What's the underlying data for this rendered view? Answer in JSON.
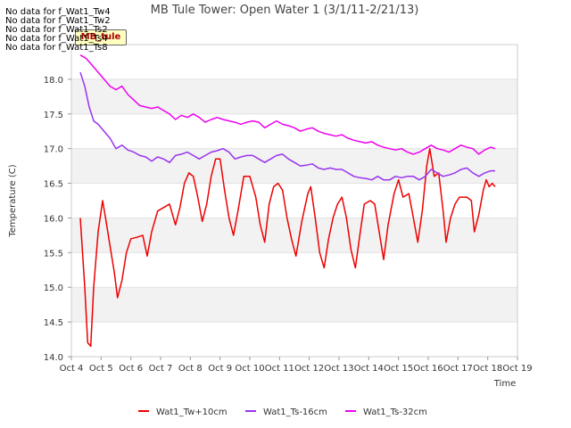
{
  "no_data_messages": [
    "No data for f_Wat1_Tw4",
    "No data for f_Wat1_Tw2",
    "No data for f_Wat1_Ts2",
    "No data for f_Wat1_Ts4",
    "No data for f_Wat1_Ts8"
  ],
  "site_badge": "MB_tule",
  "chart_data": {
    "type": "line",
    "title": "MB Tule Tower: Open Water 1 (3/1/11-2/21/13)",
    "xlabel": "Time",
    "ylabel": "Temperature (C)",
    "xlim": [
      0,
      15
    ],
    "ylim": [
      14.0,
      18.5
    ],
    "x_ticks": [
      "Oct 4",
      "Oct 5",
      "Oct 6",
      "Oct 7",
      "Oct 8",
      "Oct 9",
      "Oct 10",
      "Oct 11",
      "Oct 12",
      "Oct 13",
      "Oct 14",
      "Oct 15",
      "Oct 16",
      "Oct 17",
      "Oct 18",
      "Oct 19"
    ],
    "y_ticks": [
      "14.0",
      "14.5",
      "15.0",
      "15.5",
      "16.0",
      "16.5",
      "17.0",
      "17.5",
      "18.0"
    ],
    "y_tick_values": [
      14.0,
      14.5,
      15.0,
      15.5,
      16.0,
      16.5,
      17.0,
      17.5,
      18.0
    ],
    "series": [
      {
        "name": "Wat1_Tw+10cm",
        "color": "#ee0000",
        "points": [
          [
            0.3,
            16.0
          ],
          [
            0.45,
            15.0
          ],
          [
            0.55,
            14.2
          ],
          [
            0.65,
            14.15
          ],
          [
            0.75,
            15.0
          ],
          [
            0.9,
            15.8
          ],
          [
            1.05,
            16.25
          ],
          [
            1.15,
            16.0
          ],
          [
            1.3,
            15.6
          ],
          [
            1.45,
            15.2
          ],
          [
            1.55,
            14.85
          ],
          [
            1.7,
            15.1
          ],
          [
            1.85,
            15.5
          ],
          [
            2.0,
            15.7
          ],
          [
            2.2,
            15.72
          ],
          [
            2.4,
            15.75
          ],
          [
            2.55,
            15.45
          ],
          [
            2.7,
            15.8
          ],
          [
            2.9,
            16.1
          ],
          [
            3.1,
            16.15
          ],
          [
            3.3,
            16.2
          ],
          [
            3.5,
            15.9
          ],
          [
            3.65,
            16.15
          ],
          [
            3.8,
            16.5
          ],
          [
            3.95,
            16.65
          ],
          [
            4.1,
            16.6
          ],
          [
            4.25,
            16.3
          ],
          [
            4.4,
            15.95
          ],
          [
            4.55,
            16.2
          ],
          [
            4.7,
            16.6
          ],
          [
            4.85,
            16.85
          ],
          [
            5.0,
            16.85
          ],
          [
            5.15,
            16.4
          ],
          [
            5.3,
            16.0
          ],
          [
            5.45,
            15.75
          ],
          [
            5.6,
            16.1
          ],
          [
            5.8,
            16.6
          ],
          [
            6.0,
            16.6
          ],
          [
            6.2,
            16.3
          ],
          [
            6.35,
            15.9
          ],
          [
            6.5,
            15.65
          ],
          [
            6.65,
            16.2
          ],
          [
            6.8,
            16.45
          ],
          [
            6.95,
            16.5
          ],
          [
            7.1,
            16.4
          ],
          [
            7.25,
            16.0
          ],
          [
            7.4,
            15.7
          ],
          [
            7.55,
            15.45
          ],
          [
            7.75,
            15.95
          ],
          [
            7.95,
            16.35
          ],
          [
            8.05,
            16.45
          ],
          [
            8.2,
            16.0
          ],
          [
            8.35,
            15.5
          ],
          [
            8.5,
            15.28
          ],
          [
            8.65,
            15.7
          ],
          [
            8.8,
            16.0
          ],
          [
            8.95,
            16.2
          ],
          [
            9.1,
            16.3
          ],
          [
            9.25,
            16.0
          ],
          [
            9.4,
            15.55
          ],
          [
            9.55,
            15.28
          ],
          [
            9.7,
            15.75
          ],
          [
            9.85,
            16.2
          ],
          [
            10.05,
            16.25
          ],
          [
            10.2,
            16.2
          ],
          [
            10.35,
            15.8
          ],
          [
            10.5,
            15.4
          ],
          [
            10.65,
            15.9
          ],
          [
            10.85,
            16.35
          ],
          [
            11.0,
            16.55
          ],
          [
            11.15,
            16.3
          ],
          [
            11.35,
            16.35
          ],
          [
            11.5,
            16.0
          ],
          [
            11.65,
            15.65
          ],
          [
            11.8,
            16.1
          ],
          [
            11.95,
            16.75
          ],
          [
            12.05,
            17.0
          ],
          [
            12.2,
            16.6
          ],
          [
            12.35,
            16.65
          ],
          [
            12.5,
            16.1
          ],
          [
            12.6,
            15.65
          ],
          [
            12.75,
            16.0
          ],
          [
            12.9,
            16.2
          ],
          [
            13.05,
            16.3
          ],
          [
            13.3,
            16.3
          ],
          [
            13.45,
            16.25
          ],
          [
            13.55,
            15.8
          ],
          [
            13.7,
            16.05
          ],
          [
            13.85,
            16.4
          ],
          [
            13.95,
            16.55
          ],
          [
            14.05,
            16.45
          ],
          [
            14.15,
            16.5
          ],
          [
            14.25,
            16.45
          ]
        ]
      },
      {
        "name": "Wat1_Ts-16cm",
        "color": "#9933ee",
        "points": [
          [
            0.3,
            18.1
          ],
          [
            0.45,
            17.9
          ],
          [
            0.6,
            17.6
          ],
          [
            0.75,
            17.4
          ],
          [
            0.9,
            17.35
          ],
          [
            1.1,
            17.25
          ],
          [
            1.3,
            17.15
          ],
          [
            1.5,
            17.0
          ],
          [
            1.7,
            17.05
          ],
          [
            1.9,
            16.98
          ],
          [
            2.1,
            16.95
          ],
          [
            2.3,
            16.9
          ],
          [
            2.5,
            16.88
          ],
          [
            2.7,
            16.82
          ],
          [
            2.9,
            16.88
          ],
          [
            3.1,
            16.85
          ],
          [
            3.3,
            16.8
          ],
          [
            3.5,
            16.9
          ],
          [
            3.7,
            16.92
          ],
          [
            3.9,
            16.95
          ],
          [
            4.1,
            16.9
          ],
          [
            4.3,
            16.85
          ],
          [
            4.5,
            16.9
          ],
          [
            4.7,
            16.95
          ],
          [
            4.9,
            16.97
          ],
          [
            5.1,
            17.0
          ],
          [
            5.3,
            16.95
          ],
          [
            5.5,
            16.85
          ],
          [
            5.7,
            16.88
          ],
          [
            5.9,
            16.9
          ],
          [
            6.1,
            16.9
          ],
          [
            6.3,
            16.85
          ],
          [
            6.5,
            16.8
          ],
          [
            6.7,
            16.85
          ],
          [
            6.9,
            16.9
          ],
          [
            7.1,
            16.92
          ],
          [
            7.3,
            16.85
          ],
          [
            7.5,
            16.8
          ],
          [
            7.7,
            16.75
          ],
          [
            7.9,
            16.76
          ],
          [
            8.1,
            16.78
          ],
          [
            8.3,
            16.72
          ],
          [
            8.5,
            16.7
          ],
          [
            8.7,
            16.72
          ],
          [
            8.9,
            16.7
          ],
          [
            9.1,
            16.7
          ],
          [
            9.3,
            16.65
          ],
          [
            9.5,
            16.6
          ],
          [
            9.7,
            16.58
          ],
          [
            9.9,
            16.57
          ],
          [
            10.1,
            16.55
          ],
          [
            10.3,
            16.6
          ],
          [
            10.5,
            16.55
          ],
          [
            10.7,
            16.55
          ],
          [
            10.9,
            16.6
          ],
          [
            11.1,
            16.58
          ],
          [
            11.3,
            16.6
          ],
          [
            11.5,
            16.6
          ],
          [
            11.7,
            16.55
          ],
          [
            11.9,
            16.6
          ],
          [
            12.1,
            16.7
          ],
          [
            12.3,
            16.65
          ],
          [
            12.5,
            16.6
          ],
          [
            12.7,
            16.62
          ],
          [
            12.9,
            16.65
          ],
          [
            13.1,
            16.7
          ],
          [
            13.3,
            16.72
          ],
          [
            13.5,
            16.65
          ],
          [
            13.7,
            16.6
          ],
          [
            13.9,
            16.65
          ],
          [
            14.1,
            16.68
          ],
          [
            14.25,
            16.68
          ]
        ]
      },
      {
        "name": "Wat1_Ts-32cm",
        "color": "#ee00ee",
        "points": [
          [
            0.3,
            18.35
          ],
          [
            0.5,
            18.3
          ],
          [
            0.7,
            18.2
          ],
          [
            0.9,
            18.1
          ],
          [
            1.1,
            18.0
          ],
          [
            1.3,
            17.9
          ],
          [
            1.5,
            17.85
          ],
          [
            1.7,
            17.9
          ],
          [
            1.9,
            17.78
          ],
          [
            2.1,
            17.7
          ],
          [
            2.3,
            17.62
          ],
          [
            2.5,
            17.6
          ],
          [
            2.7,
            17.58
          ],
          [
            2.9,
            17.6
          ],
          [
            3.1,
            17.55
          ],
          [
            3.3,
            17.5
          ],
          [
            3.5,
            17.42
          ],
          [
            3.7,
            17.48
          ],
          [
            3.9,
            17.45
          ],
          [
            4.1,
            17.5
          ],
          [
            4.3,
            17.45
          ],
          [
            4.5,
            17.38
          ],
          [
            4.7,
            17.42
          ],
          [
            4.9,
            17.45
          ],
          [
            5.1,
            17.42
          ],
          [
            5.3,
            17.4
          ],
          [
            5.5,
            17.38
          ],
          [
            5.7,
            17.35
          ],
          [
            5.9,
            17.38
          ],
          [
            6.1,
            17.4
          ],
          [
            6.3,
            17.38
          ],
          [
            6.5,
            17.3
          ],
          [
            6.7,
            17.35
          ],
          [
            6.9,
            17.4
          ],
          [
            7.1,
            17.35
          ],
          [
            7.3,
            17.33
          ],
          [
            7.5,
            17.3
          ],
          [
            7.7,
            17.25
          ],
          [
            7.9,
            17.28
          ],
          [
            8.1,
            17.3
          ],
          [
            8.3,
            17.25
          ],
          [
            8.5,
            17.22
          ],
          [
            8.7,
            17.2
          ],
          [
            8.9,
            17.18
          ],
          [
            9.1,
            17.2
          ],
          [
            9.3,
            17.15
          ],
          [
            9.5,
            17.12
          ],
          [
            9.7,
            17.1
          ],
          [
            9.9,
            17.08
          ],
          [
            10.1,
            17.1
          ],
          [
            10.3,
            17.05
          ],
          [
            10.5,
            17.02
          ],
          [
            10.7,
            17.0
          ],
          [
            10.9,
            16.98
          ],
          [
            11.1,
            17.0
          ],
          [
            11.3,
            16.95
          ],
          [
            11.5,
            16.92
          ],
          [
            11.7,
            16.95
          ],
          [
            11.9,
            17.0
          ],
          [
            12.1,
            17.05
          ],
          [
            12.3,
            17.0
          ],
          [
            12.5,
            16.98
          ],
          [
            12.7,
            16.95
          ],
          [
            12.9,
            17.0
          ],
          [
            13.1,
            17.05
          ],
          [
            13.3,
            17.02
          ],
          [
            13.5,
            17.0
          ],
          [
            13.7,
            16.92
          ],
          [
            13.9,
            16.98
          ],
          [
            14.1,
            17.02
          ],
          [
            14.25,
            17.0
          ]
        ]
      }
    ]
  }
}
